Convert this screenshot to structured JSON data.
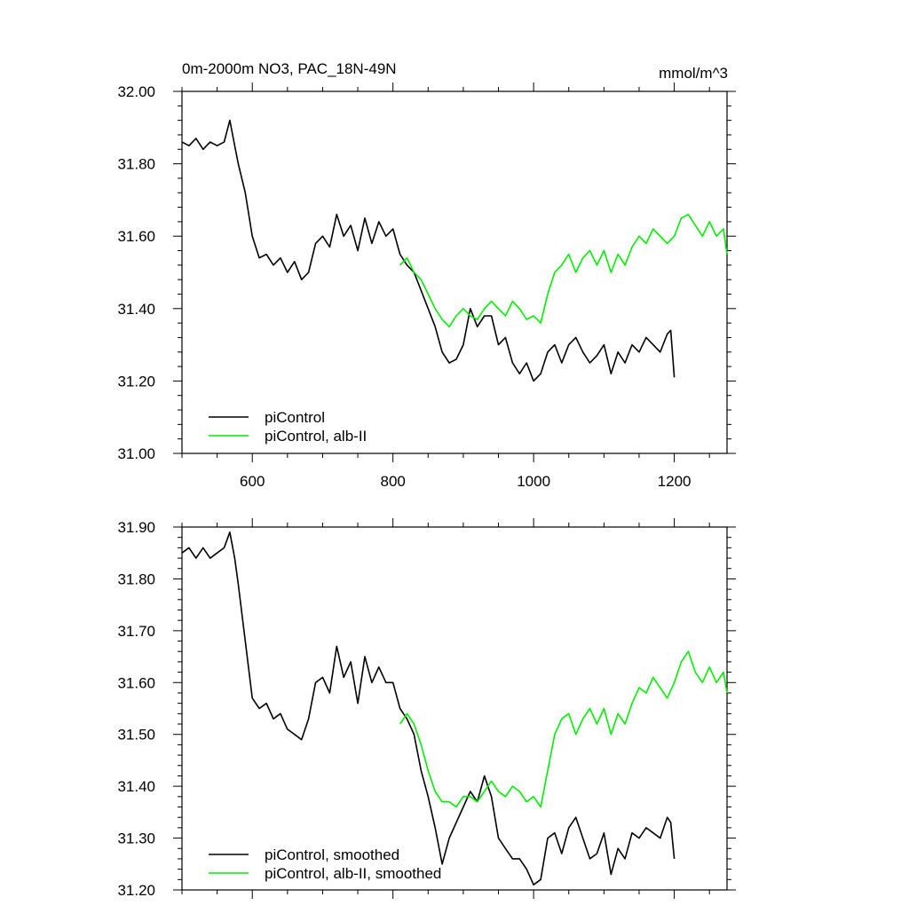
{
  "chart_data": [
    {
      "type": "line",
      "title": "0m-2000m NO3, PAC_18N-49N",
      "units": "mmol/m^3",
      "xlim": [
        500,
        1275
      ],
      "ylim": [
        31.0,
        32.0
      ],
      "xticks": [
        600,
        800,
        1000,
        1200
      ],
      "xtick_labels": [
        "600",
        "800",
        "1000",
        "1200"
      ],
      "yticks": [
        31.0,
        31.2,
        31.4,
        31.6,
        31.8,
        32.0
      ],
      "ytick_labels": [
        "31.00",
        "31.20",
        "31.40",
        "31.60",
        "31.80",
        "32.00"
      ],
      "grid": false,
      "legend_position": "bottom-left",
      "series": [
        {
          "name": "piControl",
          "color": "#000000",
          "x": [
            500,
            510,
            520,
            530,
            540,
            550,
            560,
            568,
            575,
            580,
            590,
            600,
            610,
            620,
            630,
            640,
            650,
            660,
            670,
            680,
            690,
            700,
            710,
            720,
            730,
            740,
            750,
            760,
            770,
            780,
            790,
            800,
            810,
            820,
            830,
            840,
            850,
            860,
            870,
            880,
            890,
            900,
            910,
            920,
            930,
            940,
            950,
            960,
            970,
            980,
            990,
            1000,
            1010,
            1020,
            1030,
            1040,
            1050,
            1060,
            1070,
            1080,
            1090,
            1100,
            1110,
            1120,
            1130,
            1140,
            1150,
            1160,
            1170,
            1180,
            1190,
            1195,
            1200
          ],
          "values": [
            31.86,
            31.85,
            31.87,
            31.84,
            31.86,
            31.85,
            31.86,
            31.92,
            31.85,
            31.8,
            31.72,
            31.6,
            31.54,
            31.55,
            31.52,
            31.54,
            31.5,
            31.53,
            31.48,
            31.5,
            31.58,
            31.6,
            31.57,
            31.66,
            31.6,
            31.63,
            31.56,
            31.65,
            31.58,
            31.64,
            31.6,
            31.62,
            31.55,
            31.52,
            31.5,
            31.45,
            31.4,
            31.35,
            31.28,
            31.25,
            31.26,
            31.3,
            31.4,
            31.35,
            31.38,
            31.38,
            31.3,
            31.32,
            31.25,
            31.22,
            31.25,
            31.2,
            31.22,
            31.28,
            31.3,
            31.25,
            31.3,
            31.32,
            31.28,
            31.25,
            31.27,
            31.3,
            31.22,
            31.28,
            31.25,
            31.3,
            31.28,
            31.32,
            31.3,
            31.28,
            31.33,
            31.34,
            31.21
          ]
        },
        {
          "name": "piControl, alb-II",
          "color": "#00ee00",
          "x": [
            810,
            820,
            830,
            840,
            850,
            860,
            870,
            880,
            890,
            900,
            910,
            920,
            930,
            940,
            950,
            960,
            970,
            980,
            990,
            1000,
            1010,
            1020,
            1030,
            1040,
            1050,
            1060,
            1070,
            1080,
            1090,
            1100,
            1110,
            1120,
            1130,
            1140,
            1150,
            1160,
            1170,
            1180,
            1190,
            1200,
            1210,
            1220,
            1230,
            1240,
            1250,
            1260,
            1270,
            1275
          ],
          "values": [
            31.52,
            31.54,
            31.5,
            31.48,
            31.44,
            31.4,
            31.37,
            31.35,
            31.38,
            31.4,
            31.38,
            31.37,
            31.4,
            31.42,
            31.4,
            31.38,
            31.42,
            31.4,
            31.37,
            31.38,
            31.36,
            31.44,
            31.5,
            31.52,
            31.55,
            31.5,
            31.54,
            31.56,
            31.52,
            31.56,
            31.5,
            31.55,
            31.52,
            31.57,
            31.6,
            31.58,
            31.62,
            31.6,
            31.58,
            31.6,
            31.65,
            31.66,
            31.63,
            31.6,
            31.64,
            31.6,
            31.62,
            31.55
          ]
        }
      ]
    },
    {
      "type": "line",
      "xlim": [
        500,
        1275
      ],
      "ylim": [
        31.2,
        31.9
      ],
      "xticks": [
        600,
        800,
        1000,
        1200
      ],
      "yticks": [
        31.2,
        31.3,
        31.4,
        31.5,
        31.6,
        31.7,
        31.8,
        31.9
      ],
      "ytick_labels": [
        "31.20",
        "31.30",
        "31.40",
        "31.50",
        "31.60",
        "31.70",
        "31.80",
        "31.90"
      ],
      "grid": false,
      "legend_position": "bottom-left",
      "series": [
        {
          "name": "piControl, smoothed",
          "color": "#000000",
          "x": [
            500,
            510,
            520,
            530,
            540,
            550,
            560,
            568,
            575,
            580,
            590,
            600,
            610,
            620,
            630,
            640,
            650,
            660,
            670,
            680,
            690,
            700,
            710,
            720,
            730,
            740,
            750,
            760,
            770,
            780,
            790,
            800,
            810,
            820,
            830,
            840,
            850,
            860,
            870,
            880,
            890,
            900,
            910,
            920,
            930,
            940,
            950,
            960,
            970,
            980,
            990,
            1000,
            1010,
            1020,
            1030,
            1040,
            1050,
            1060,
            1070,
            1080,
            1090,
            1100,
            1110,
            1120,
            1130,
            1140,
            1150,
            1160,
            1170,
            1180,
            1190,
            1195,
            1200
          ],
          "values": [
            31.85,
            31.86,
            31.84,
            31.86,
            31.84,
            31.85,
            31.86,
            31.89,
            31.84,
            31.79,
            31.68,
            31.57,
            31.55,
            31.56,
            31.53,
            31.54,
            31.51,
            31.5,
            31.49,
            31.53,
            31.6,
            31.61,
            31.58,
            31.67,
            31.61,
            31.64,
            31.56,
            31.65,
            31.6,
            31.63,
            31.6,
            31.6,
            31.55,
            31.53,
            31.5,
            31.43,
            31.38,
            31.32,
            31.25,
            31.3,
            31.33,
            31.36,
            31.39,
            31.37,
            31.42,
            31.38,
            31.3,
            31.28,
            31.26,
            31.26,
            31.24,
            31.21,
            31.22,
            31.3,
            31.31,
            31.27,
            31.32,
            31.34,
            31.3,
            31.26,
            31.27,
            31.31,
            31.23,
            31.28,
            31.26,
            31.31,
            31.3,
            31.32,
            31.31,
            31.3,
            31.34,
            31.33,
            31.26
          ]
        },
        {
          "name": "piControl, alb-II, smoothed",
          "color": "#00ee00",
          "x": [
            810,
            820,
            830,
            840,
            850,
            860,
            870,
            880,
            890,
            900,
            910,
            920,
            930,
            940,
            950,
            960,
            970,
            980,
            990,
            1000,
            1010,
            1020,
            1030,
            1040,
            1050,
            1060,
            1070,
            1080,
            1090,
            1100,
            1110,
            1120,
            1130,
            1140,
            1150,
            1160,
            1170,
            1180,
            1190,
            1200,
            1210,
            1220,
            1230,
            1240,
            1250,
            1260,
            1270,
            1275
          ],
          "values": [
            31.52,
            31.54,
            31.52,
            31.48,
            31.43,
            31.39,
            31.37,
            31.37,
            31.36,
            31.38,
            31.38,
            31.37,
            31.39,
            31.41,
            31.39,
            31.38,
            31.4,
            31.39,
            31.37,
            31.38,
            31.36,
            31.43,
            31.5,
            31.53,
            31.54,
            31.5,
            31.53,
            31.55,
            31.52,
            31.55,
            31.5,
            31.54,
            31.52,
            31.56,
            31.59,
            31.58,
            31.61,
            31.59,
            31.57,
            31.6,
            31.64,
            31.66,
            31.62,
            31.6,
            31.63,
            31.6,
            31.62,
            31.58
          ]
        }
      ]
    }
  ]
}
